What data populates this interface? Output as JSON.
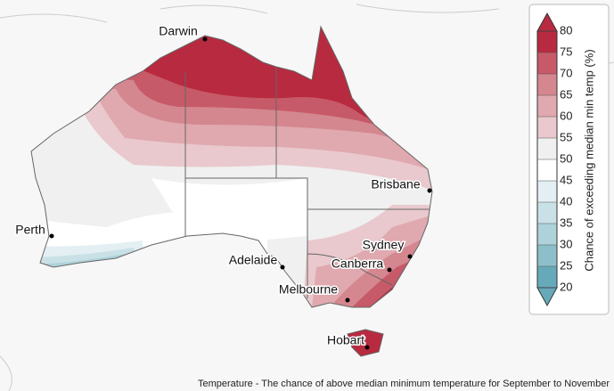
{
  "map": {
    "cities": [
      {
        "name": "Darwin"
      },
      {
        "name": "Brisbane"
      },
      {
        "name": "Perth"
      },
      {
        "name": "Sydney"
      },
      {
        "name": "Canberra"
      },
      {
        "name": "Adelaide"
      },
      {
        "name": "Melbourne"
      },
      {
        "name": "Hobart"
      }
    ]
  },
  "legend": {
    "title": "Chance of exceeding median min temp (%)",
    "ticks": [
      20,
      25,
      30,
      35,
      40,
      45,
      50,
      55,
      60,
      65,
      70,
      75,
      80
    ],
    "colors": [
      "#66aab9",
      "#8cbfca",
      "#aed2da",
      "#c9e1e6",
      "#e3eff2",
      "#ffffff",
      "#f0f0f0",
      "#e9c9cd",
      "#dfa9af",
      "#d4878f",
      "#c75a68",
      "#b82a3f"
    ]
  },
  "caption": "Temperature - The chance of above median minimum temperature for September to November"
}
